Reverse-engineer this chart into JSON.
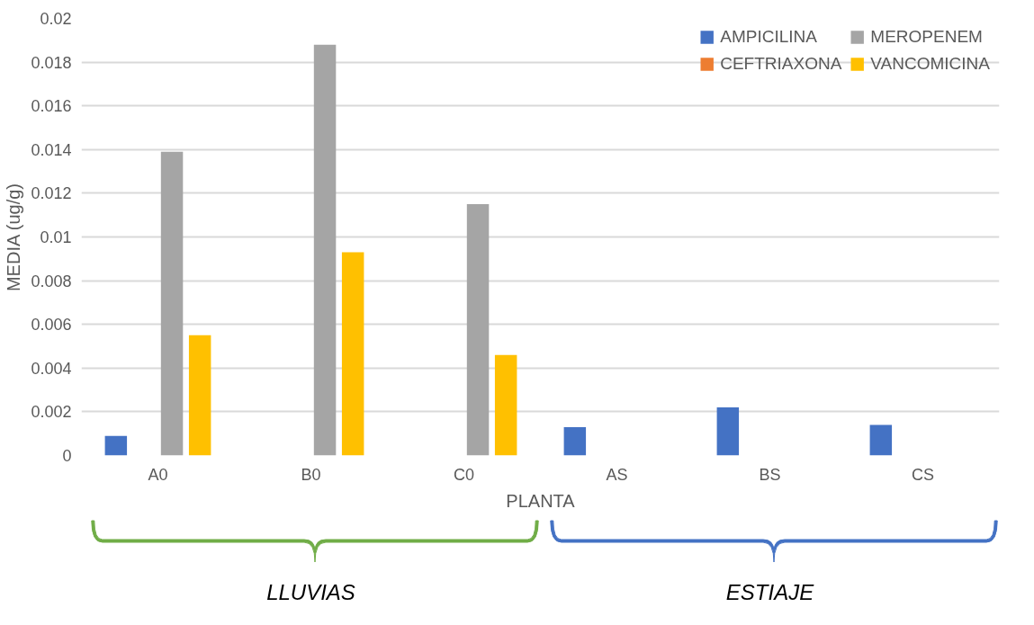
{
  "chart_data": {
    "type": "bar",
    "xlabel": "PLANTA",
    "ylabel": "MEDIA (ug/g)",
    "categories": [
      "A0",
      "B0",
      "C0",
      "AS",
      "BS",
      "CS"
    ],
    "series": [
      {
        "name": "AMPICILINA",
        "color": "#4472c4",
        "values": [
          0.0009,
          0,
          0,
          0.0013,
          0.0022,
          0.0014
        ]
      },
      {
        "name": "CEFTRIAXONA",
        "color": "#ed7d31",
        "values": [
          0,
          0,
          0,
          0,
          0,
          0
        ]
      },
      {
        "name": "MEROPENEM",
        "color": "#a5a5a5",
        "values": [
          0.0139,
          0.0188,
          0.0115,
          0,
          0,
          0
        ]
      },
      {
        "name": "VANCOMICINA",
        "color": "#ffc000",
        "values": [
          0.0055,
          0.0093,
          0.0046,
          0,
          0,
          0
        ]
      }
    ],
    "ylim": [
      0,
      0.02
    ],
    "yticks": [
      0,
      0.002,
      0.004,
      0.006,
      0.008,
      0.01,
      0.012,
      0.014,
      0.016,
      0.018,
      0.02
    ],
    "grid": "y",
    "legend": "top right",
    "annotations": [
      "LLUVIAS",
      "ESTIAJE"
    ]
  }
}
